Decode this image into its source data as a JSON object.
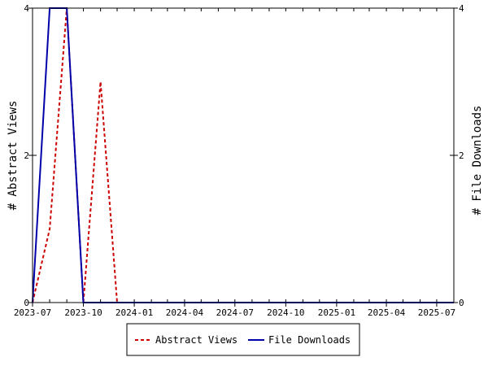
{
  "chart_data": {
    "type": "line",
    "x_axis": {
      "kind": "date",
      "min": "2023-07-01",
      "max": "2025-08-01",
      "tick_labels": [
        "2023-07",
        "2023-10",
        "2024-01",
        "2024-04",
        "2024-07",
        "2024-10",
        "2025-01",
        "2025-04",
        "2025-07"
      ]
    },
    "y_left": {
      "label": "# Abstract Views",
      "min": 0,
      "max": 4,
      "ticks": [
        0,
        2,
        4
      ]
    },
    "y_right": {
      "label": "# File Downloads",
      "min": 0,
      "max": 4,
      "ticks": [
        0,
        2,
        4
      ]
    },
    "legend": {
      "position": "bottom-center"
    },
    "series": [
      {
        "name": "Abstract Views",
        "axis": "left",
        "color": "#cc0000",
        "style": "dashed",
        "points": [
          [
            "2023-07-01",
            0
          ],
          [
            "2023-08-01",
            1
          ],
          [
            "2023-09-01",
            4
          ],
          [
            "2023-10-01",
            0
          ],
          [
            "2023-11-01",
            3
          ],
          [
            "2023-12-01",
            0
          ],
          [
            "2024-01-01",
            0
          ],
          [
            "2024-04-01",
            0
          ],
          [
            "2024-07-01",
            0
          ],
          [
            "2024-10-01",
            0
          ],
          [
            "2025-01-01",
            0
          ],
          [
            "2025-04-01",
            0
          ],
          [
            "2025-08-01",
            0
          ]
        ]
      },
      {
        "name": "File Downloads",
        "axis": "right",
        "color": "#0000aa",
        "style": "solid",
        "points": [
          [
            "2023-07-01",
            0
          ],
          [
            "2023-08-01",
            4
          ],
          [
            "2023-09-01",
            4
          ],
          [
            "2023-10-01",
            0
          ],
          [
            "2023-11-01",
            0
          ],
          [
            "2023-12-01",
            0
          ],
          [
            "2024-01-01",
            0
          ],
          [
            "2024-04-01",
            0
          ],
          [
            "2024-07-01",
            0
          ],
          [
            "2024-10-01",
            0
          ],
          [
            "2025-01-01",
            0
          ],
          [
            "2025-04-01",
            0
          ],
          [
            "2025-08-01",
            0
          ]
        ]
      }
    ]
  }
}
